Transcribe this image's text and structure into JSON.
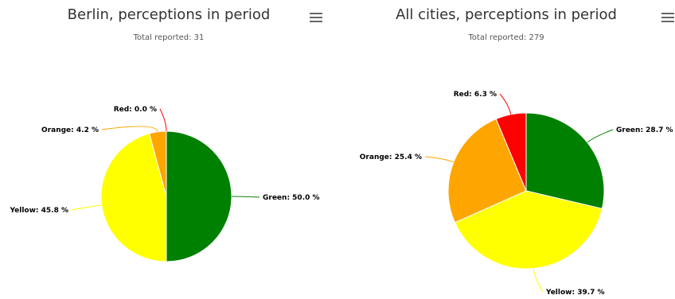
{
  "chart_data": [
    {
      "type": "pie",
      "title": "Berlin, perceptions in period",
      "subtitle": "Total reported: 31",
      "slices": [
        {
          "name": "Green",
          "value": 50.0,
          "label": "Green: 50.0 %",
          "color": "#008000"
        },
        {
          "name": "Yellow",
          "value": 45.8,
          "label": "Yellow: 45.8 %",
          "color": "#ffff00"
        },
        {
          "name": "Orange",
          "value": 4.2,
          "label": "Orange: 4.2 %",
          "color": "#ffa500"
        },
        {
          "name": "Red",
          "value": 0.0,
          "label": "Red: 0.0 %",
          "color": "#ff0000"
        }
      ]
    },
    {
      "type": "pie",
      "title": "All cities, perceptions in period",
      "subtitle": "Total reported: 279",
      "slices": [
        {
          "name": "Green",
          "value": 28.7,
          "label": "Green: 28.7 %",
          "color": "#008000"
        },
        {
          "name": "Yellow",
          "value": 39.7,
          "label": "Yellow: 39.7 %",
          "color": "#ffff00"
        },
        {
          "name": "Orange",
          "value": 25.4,
          "label": "Orange: 25.4 %",
          "color": "#ffa500"
        },
        {
          "name": "Red",
          "value": 6.3,
          "label": "Red: 6.3 %",
          "color": "#ff0000"
        }
      ]
    }
  ],
  "menu_icon": "hamburger-menu-icon"
}
